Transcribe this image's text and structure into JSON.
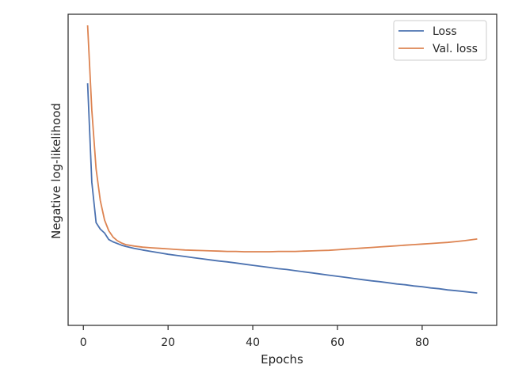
{
  "chart_data": {
    "type": "line",
    "xlabel": "Epochs",
    "ylabel": "Negative log-likelihood",
    "xlim": [
      -3.6,
      97.6
    ],
    "ylim": [
      0,
      100
    ],
    "xticks": [
      0,
      20,
      40,
      60,
      80
    ],
    "grid": false,
    "legend_position": "upper right",
    "series": [
      {
        "name": "Loss",
        "color": "#4c72b0",
        "x": [
          1,
          2,
          3,
          4,
          5,
          6,
          7,
          8,
          9,
          10,
          12,
          14,
          16,
          18,
          20,
          22,
          24,
          26,
          28,
          30,
          32,
          34,
          36,
          38,
          40,
          42,
          44,
          46,
          48,
          50,
          52,
          54,
          56,
          58,
          60,
          62,
          64,
          66,
          68,
          70,
          72,
          74,
          76,
          78,
          80,
          82,
          84,
          86,
          88,
          90,
          93
        ],
        "y": [
          79.5,
          44.5,
          30.2,
          27.9,
          26.5,
          24.2,
          23.4,
          22.8,
          22.2,
          21.8,
          21.1,
          20.5,
          20.0,
          19.5,
          19.0,
          18.6,
          18.2,
          17.8,
          17.4,
          17.0,
          16.6,
          16.3,
          15.9,
          15.5,
          15.1,
          14.7,
          14.3,
          13.9,
          13.6,
          13.2,
          12.8,
          12.4,
          12.0,
          11.6,
          11.2,
          10.8,
          10.4,
          10.0,
          9.6,
          9.3,
          8.9,
          8.5,
          8.2,
          7.8,
          7.5,
          7.1,
          6.8,
          6.4,
          6.1,
          5.8,
          5.3
        ]
      },
      {
        "name": "Val. loss",
        "color": "#dd8452",
        "x": [
          1,
          2,
          3,
          4,
          5,
          6,
          7,
          8,
          9,
          10,
          12,
          14,
          16,
          18,
          20,
          22,
          24,
          26,
          28,
          30,
          32,
          34,
          36,
          38,
          40,
          42,
          44,
          46,
          48,
          50,
          52,
          54,
          56,
          58,
          60,
          62,
          64,
          66,
          68,
          70,
          72,
          74,
          76,
          78,
          80,
          82,
          84,
          86,
          88,
          90,
          93
        ],
        "y": [
          100.0,
          70.0,
          49.2,
          38.0,
          31.1,
          27.3,
          25.1,
          23.8,
          23.0,
          22.4,
          21.9,
          21.5,
          21.3,
          21.1,
          20.9,
          20.7,
          20.5,
          20.4,
          20.3,
          20.2,
          20.1,
          20.0,
          20.0,
          19.9,
          19.9,
          19.9,
          19.9,
          20.0,
          20.0,
          20.0,
          20.1,
          20.2,
          20.3,
          20.4,
          20.6,
          20.8,
          21.0,
          21.2,
          21.4,
          21.6,
          21.8,
          22.0,
          22.2,
          22.4,
          22.6,
          22.8,
          23.0,
          23.2,
          23.5,
          23.8,
          24.4
        ]
      }
    ]
  }
}
